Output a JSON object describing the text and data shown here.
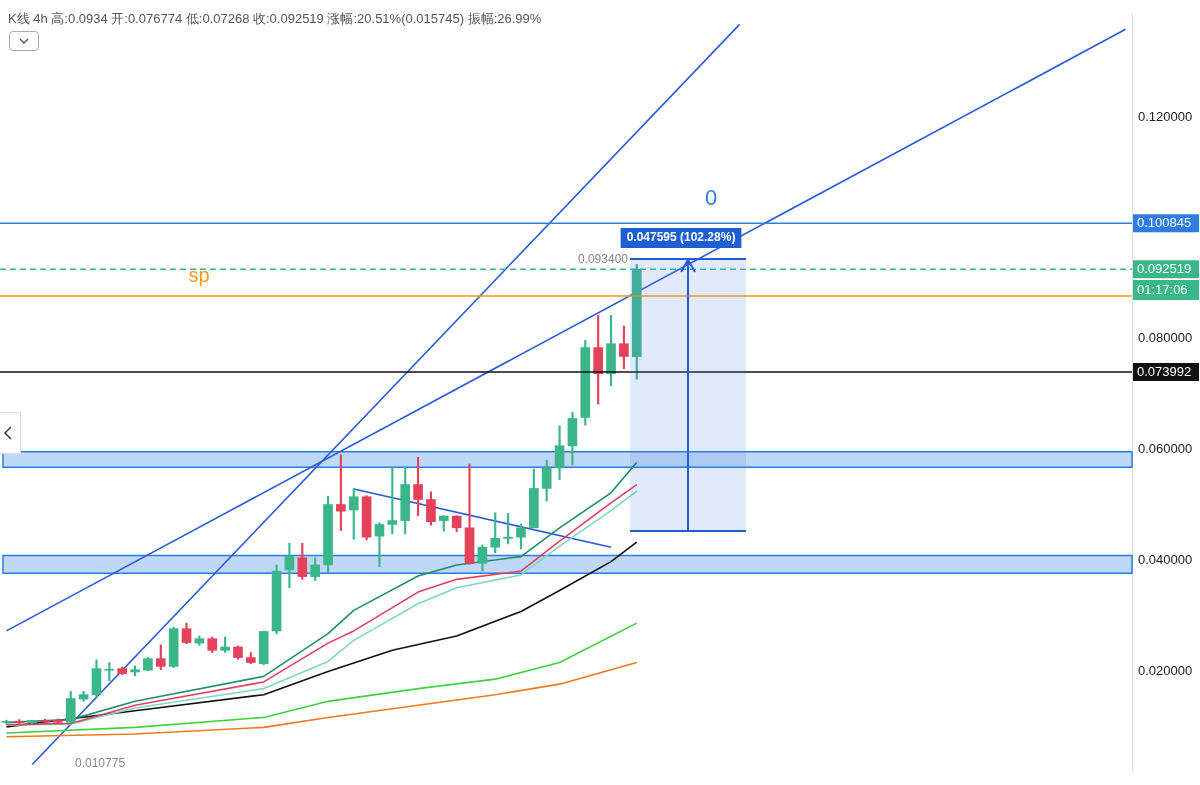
{
  "chart_data": {
    "type": "candlestick",
    "title": "K线 4h 高:0.0934 开:0.076774 低:0.07268 收:0.092519 涨幅:20.51%(0.015745) 振幅:26.99%",
    "categories": [
      null,
      null,
      null,
      null,
      null,
      null,
      null,
      null,
      null,
      null,
      null,
      null,
      null,
      null,
      null,
      null,
      null,
      null,
      null,
      null,
      null,
      null,
      null,
      null,
      null,
      null,
      null,
      null,
      null,
      null,
      null,
      null,
      null,
      null,
      null,
      null,
      null,
      null,
      null,
      null,
      null,
      null,
      null,
      null,
      null,
      null,
      null,
      null,
      null,
      null,
      null,
      null,
      null,
      null,
      null,
      null,
      null,
      null,
      null,
      null,
      null,
      null,
      null,
      null,
      null,
      null,
      null,
      null,
      null,
      null,
      null,
      null,
      null,
      null,
      null,
      null,
      null,
      null,
      null,
      null,
      null,
      null,
      null,
      null,
      null,
      null,
      null,
      null
    ],
    "ohlc": [
      [
        0.0108,
        0.0112,
        0.0105,
        0.011
      ],
      [
        0.011,
        0.0113,
        0.0106,
        0.0108
      ],
      [
        0.0108,
        0.0112,
        0.0105,
        0.0111
      ],
      [
        0.0111,
        0.0114,
        0.0107,
        0.0109
      ],
      [
        0.0112,
        0.0114,
        0.0106,
        0.0108
      ],
      [
        0.0108,
        0.0164,
        0.0107,
        0.0151
      ],
      [
        0.015,
        0.0164,
        0.0146,
        0.0158
      ],
      [
        0.0158,
        0.0221,
        0.0154,
        0.0205
      ],
      [
        0.0202,
        0.0216,
        0.0183,
        0.0204
      ],
      [
        0.0205,
        0.0208,
        0.0194,
        0.0196
      ],
      [
        0.0199,
        0.021,
        0.0192,
        0.0203
      ],
      [
        0.0202,
        0.0225,
        0.0201,
        0.0223
      ],
      [
        0.0223,
        0.0248,
        0.0203,
        0.0209
      ],
      [
        0.0209,
        0.028,
        0.0207,
        0.0277
      ],
      [
        0.0277,
        0.0287,
        0.025,
        0.0252
      ],
      [
        0.0251,
        0.0264,
        0.0247,
        0.0259
      ],
      [
        0.0259,
        0.0262,
        0.0234,
        0.0238
      ],
      [
        0.0238,
        0.0262,
        0.0234,
        0.0244
      ],
      [
        0.0244,
        0.0246,
        0.0222,
        0.0225
      ],
      [
        0.0225,
        0.0234,
        0.0214,
        0.0216
      ],
      [
        0.0214,
        0.0272,
        0.0212,
        0.0272
      ],
      [
        0.0273,
        0.0392,
        0.0268,
        0.0381
      ],
      [
        0.0383,
        0.0431,
        0.0351,
        0.0407
      ],
      [
        0.0405,
        0.0431,
        0.0366,
        0.0371
      ],
      [
        0.0371,
        0.0405,
        0.0364,
        0.0392
      ],
      [
        0.0392,
        0.0516,
        0.0378,
        0.0501
      ],
      [
        0.0501,
        0.059,
        0.0454,
        0.0489
      ],
      [
        0.0491,
        0.053,
        0.0438,
        0.0515
      ],
      [
        0.0515,
        0.0517,
        0.0437,
        0.0442
      ],
      [
        0.0444,
        0.0468,
        0.0389,
        0.0465
      ],
      [
        0.0465,
        0.0569,
        0.0448,
        0.0472
      ],
      [
        0.0472,
        0.0569,
        0.0448,
        0.0537
      ],
      [
        0.0537,
        0.0586,
        0.0481,
        0.051
      ],
      [
        0.051,
        0.0524,
        0.0464,
        0.047
      ],
      [
        0.0472,
        0.0481,
        0.0453,
        0.048
      ],
      [
        0.048,
        0.0481,
        0.0452,
        0.0459
      ],
      [
        0.0459,
        0.0574,
        0.0393,
        0.0395
      ],
      [
        0.0395,
        0.0428,
        0.0381,
        0.0424
      ],
      [
        0.0424,
        0.0486,
        0.0414,
        0.044
      ],
      [
        0.044,
        0.0485,
        0.043,
        0.0442
      ],
      [
        0.0442,
        0.0466,
        0.0421,
        0.0459
      ],
      [
        0.0459,
        0.0565,
        0.0459,
        0.053
      ],
      [
        0.053,
        0.0581,
        0.0507,
        0.0567
      ],
      [
        0.0567,
        0.0643,
        0.0546,
        0.0607
      ],
      [
        0.0607,
        0.0667,
        0.0573,
        0.0656
      ],
      [
        0.0658,
        0.0797,
        0.0644,
        0.0784
      ],
      [
        0.0784,
        0.0842,
        0.0682,
        0.0737
      ],
      [
        0.0737,
        0.0842,
        0.0715,
        0.0791
      ],
      [
        0.0791,
        0.0823,
        0.0746,
        0.0768
      ],
      [
        0.076774,
        0.0934,
        0.07268,
        0.092519
      ],
      null,
      null,
      null,
      null,
      null,
      null,
      null,
      null,
      null,
      null,
      null,
      null,
      null,
      null,
      null,
      null,
      null,
      null,
      null,
      null,
      null,
      null,
      null,
      null,
      null,
      null,
      null,
      null,
      null,
      null,
      null,
      null,
      null,
      null,
      null,
      null,
      null,
      null
    ],
    "colors": [
      "#3bb58a",
      "#e3425a",
      "#3bb58a",
      "#e3425a",
      "#e3425a",
      "#3bb58a",
      "#3bb58a",
      "#3bb58a",
      "#3bb58a",
      "#e3425a",
      "#3bb58a",
      "#3bb58a",
      "#e3425a",
      "#3bb58a",
      "#e3425a",
      "#3bb58a",
      "#e3425a",
      "#3bb58a",
      "#e3425a",
      "#e3425a",
      "#3bb58a",
      "#3bb58a",
      "#3bb58a",
      "#e3425a",
      "#3bb58a",
      "#3bb58a",
      "#e3425a",
      "#3bb58a",
      "#e3425a",
      "#3bb58a",
      "#3bb58a",
      "#3bb58a",
      "#e3425a",
      "#e3425a",
      "#3bb58a",
      "#e3425a",
      "#e3425a",
      "#3bb58a",
      "#3bb58a",
      "#3bb58a",
      "#3bb58a",
      "#3bb58a",
      "#3bb58a",
      "#3bb58a",
      "#3bb58a",
      "#3bb58a",
      "#e3425a",
      "#3bb58a",
      "#e3425a",
      "#3bb58a",
      null,
      null,
      null,
      null,
      null,
      null,
      null,
      null,
      null,
      null,
      null,
      null,
      null,
      null,
      null,
      null,
      null,
      null,
      null,
      null,
      null,
      null,
      null,
      null,
      null,
      null,
      null,
      null,
      null,
      null,
      null,
      null,
      null,
      null,
      null,
      null,
      null,
      null
    ],
    "series": [
      {
        "type": "line",
        "color": "#1f8f6a",
        "values": [
          0.0108,
          null,
          null,
          null,
          null,
          0.0113,
          null,
          null,
          null,
          null,
          0.0146,
          null,
          null,
          null,
          null,
          null,
          null,
          null,
          null,
          null,
          0.0191,
          null,
          null,
          null,
          null,
          0.0268,
          null,
          0.031,
          null,
          null,
          null,
          null,
          0.0372,
          null,
          null,
          0.0392,
          null,
          null,
          null,
          null,
          0.0407,
          null,
          null,
          0.0459,
          null,
          null,
          null,
          0.0522,
          null,
          0.0577,
          null,
          null,
          null,
          null,
          null,
          null,
          null,
          null,
          null,
          null,
          null,
          null,
          null,
          null,
          null,
          null,
          null,
          null,
          null,
          null,
          null,
          null,
          null,
          null,
          null,
          null,
          null,
          null,
          null,
          null,
          null,
          null,
          null,
          null,
          null,
          null,
          null,
          null
        ]
      },
      {
        "type": "line",
        "color": "#e0405e",
        "values": [
          0.0104,
          null,
          null,
          null,
          null,
          0.0106,
          null,
          null,
          null,
          null,
          0.0139,
          null,
          null,
          null,
          null,
          null,
          null,
          null,
          null,
          null,
          0.0181,
          null,
          null,
          null,
          null,
          0.0251,
          null,
          0.0273,
          null,
          null,
          null,
          null,
          0.0343,
          null,
          null,
          0.0366,
          null,
          null,
          null,
          null,
          0.0381,
          null,
          null,
          0.0435,
          null,
          null,
          null,
          0.0504,
          null,
          0.0537,
          null,
          null,
          null,
          null,
          null,
          null,
          null,
          null,
          null,
          null,
          null,
          null,
          null,
          null,
          null,
          null,
          null,
          null,
          null,
          null,
          null,
          null,
          null,
          null,
          null,
          null,
          null,
          null,
          null,
          null,
          null,
          null,
          null,
          null,
          null,
          null,
          null,
          null
        ]
      },
      {
        "type": "line",
        "color": "#7fd6c8",
        "values": [
          0.0103,
          null,
          null,
          null,
          null,
          0.0105,
          null,
          null,
          null,
          null,
          0.0134,
          null,
          null,
          null,
          null,
          null,
          null,
          null,
          null,
          null,
          0.0169,
          null,
          null,
          null,
          null,
          0.0218,
          null,
          0.0256,
          null,
          null,
          null,
          null,
          0.0322,
          null,
          null,
          0.0351,
          null,
          null,
          null,
          null,
          0.0374,
          null,
          null,
          0.0426,
          null,
          null,
          null,
          0.049,
          null,
          0.0525,
          null,
          null,
          null,
          null,
          null,
          null,
          null,
          null,
          null,
          null,
          null,
          null,
          null,
          null,
          null,
          null,
          null,
          null,
          null,
          null,
          null,
          null,
          null,
          null,
          null,
          null,
          null,
          null,
          null,
          null,
          null,
          null,
          null,
          null,
          null,
          null,
          null,
          null
        ]
      },
      {
        "type": "line",
        "color": "#111111",
        "values": [
          0.01,
          null,
          null,
          null,
          null,
          null,
          null,
          null,
          null,
          null,
          0.0129,
          null,
          null,
          null,
          null,
          null,
          null,
          null,
          null,
          null,
          0.0158,
          null,
          null,
          null,
          null,
          0.02,
          null,
          null,
          null,
          null,
          0.0238,
          null,
          null,
          null,
          null,
          0.0264,
          null,
          null,
          null,
          null,
          0.0308,
          null,
          null,
          0.0346,
          null,
          null,
          null,
          0.0398,
          null,
          0.0433,
          null,
          null,
          null,
          null,
          null,
          null,
          null,
          null,
          null,
          null,
          null,
          null,
          null,
          null,
          null,
          null,
          null,
          null,
          null,
          null,
          null,
          null,
          null,
          null,
          null,
          null,
          null,
          null,
          null,
          null,
          null,
          null,
          null,
          null,
          null,
          null,
          null,
          null
        ]
      },
      {
        "type": "line",
        "color": "#3fd23f",
        "values": [
          0.0089,
          null,
          null,
          null,
          null,
          null,
          null,
          null,
          null,
          null,
          0.0099,
          null,
          null,
          null,
          null,
          null,
          null,
          null,
          null,
          null,
          0.0117,
          null,
          null,
          null,
          null,
          0.0146,
          null,
          null,
          null,
          null,
          null,
          null,
          0.0169,
          null,
          null,
          null,
          null,
          null,
          0.0186,
          null,
          null,
          null,
          null,
          0.0216,
          null,
          null,
          null,
          null,
          null,
          0.0287,
          null,
          null,
          null,
          null,
          null,
          null,
          null,
          null,
          null,
          null,
          null,
          null,
          null,
          null,
          null,
          null,
          null,
          null,
          null,
          null,
          null,
          null,
          null,
          null,
          null,
          null,
          null,
          null,
          null,
          null,
          null,
          null,
          null,
          null,
          null,
          null,
          null,
          null
        ]
      },
      {
        "type": "line",
        "color": "#f0781e",
        "values": [
          0.0082,
          null,
          null,
          null,
          null,
          null,
          null,
          null,
          null,
          null,
          0.0087,
          null,
          null,
          null,
          null,
          null,
          null,
          null,
          null,
          null,
          0.0099,
          null,
          null,
          null,
          null,
          0.0117,
          null,
          null,
          null,
          null,
          null,
          null,
          0.0139,
          null,
          null,
          null,
          null,
          null,
          0.0158,
          null,
          null,
          null,
          null,
          0.0177,
          null,
          null,
          null,
          null,
          null,
          0.0216,
          null,
          null,
          null,
          null,
          null,
          null,
          null,
          null,
          null,
          null,
          null,
          null,
          null,
          null,
          null,
          null,
          null,
          null,
          null,
          null,
          null,
          null,
          null,
          null,
          null,
          null,
          null,
          null,
          null,
          null,
          null,
          null,
          null,
          null,
          null,
          null,
          null,
          null
        ]
      },
      {
        "type": "line",
        "color": "#2a5bd7",
        "values": [
          null,
          null,
          0.0032,
          null,
          null,
          null,
          null,
          null,
          null,
          null,
          null,
          null,
          null,
          null,
          null,
          null,
          null,
          null,
          null,
          null,
          null,
          null,
          null,
          null,
          null,
          null,
          null,
          null,
          null,
          null,
          null,
          null,
          null,
          null,
          null,
          null,
          null,
          null,
          null,
          null,
          null,
          null,
          null,
          null,
          null,
          null,
          null,
          null,
          null,
          null,
          null,
          null,
          null,
          null,
          null,
          null,
          null,
          0.1367,
          null,
          null,
          null,
          null,
          null,
          null,
          null,
          null,
          null,
          null,
          null,
          null,
          null,
          null,
          null,
          null,
          null,
          null,
          null,
          null,
          null,
          null,
          null,
          null,
          null,
          null,
          null,
          null,
          null,
          null
        ]
      },
      {
        "type": "line",
        "color": "#2a5bd7",
        "values": [
          0.0273,
          null,
          null,
          null,
          null,
          null,
          null,
          null,
          null,
          null,
          null,
          null,
          null,
          null,
          null,
          null,
          null,
          null,
          null,
          null,
          null,
          null,
          null,
          null,
          null,
          null,
          null,
          null,
          null,
          null,
          null,
          null,
          null,
          null,
          null,
          null,
          null,
          null,
          null,
          null,
          null,
          null,
          null,
          null,
          null,
          null,
          null,
          null,
          null,
          null,
          null,
          null,
          null,
          null,
          null,
          null,
          null,
          null,
          null,
          null,
          null,
          null,
          null,
          null,
          null,
          null,
          null,
          null,
          null,
          null,
          null,
          null,
          null,
          null,
          null,
          null,
          null,
          null,
          null,
          null,
          null,
          null,
          null,
          null,
          null,
          null,
          null,
          0.1358
        ]
      },
      {
        "type": "line",
        "color": "#2a5bd7",
        "values": [
          null,
          null,
          null,
          null,
          null,
          null,
          null,
          null,
          null,
          null,
          null,
          null,
          null,
          null,
          null,
          null,
          null,
          null,
          null,
          null,
          null,
          null,
          null,
          null,
          null,
          null,
          null,
          0.0529,
          null,
          null,
          null,
          null,
          null,
          null,
          null,
          null,
          null,
          null,
          null,
          null,
          null,
          null,
          null,
          null,
          null,
          null,
          null,
          0.0424,
          null,
          null,
          null,
          null,
          null,
          null,
          null,
          null,
          null,
          null,
          null,
          null,
          null,
          null,
          null,
          null,
          null,
          null,
          null,
          null,
          null,
          null,
          null,
          null,
          null,
          null,
          null,
          null,
          null,
          null,
          null,
          null,
          null,
          null,
          null,
          null,
          null,
          null,
          null,
          null
        ]
      }
    ],
    "ylim": [
      0.002,
      0.1386
    ],
    "yticks": [
      {
        "value": 0.02,
        "label": "0.020000"
      },
      {
        "value": 0.04,
        "label": "0.040000"
      },
      {
        "value": 0.06,
        "label": "0.060000"
      },
      {
        "value": 0.08,
        "label": "0.080000"
      },
      {
        "value": 0.12,
        "label": "0.120000"
      }
    ],
    "tick_labels": "y",
    "grid": false,
    "legend": false,
    "marker": "none",
    "ref_lines": [
      {
        "axis": "y",
        "value": 0.100845,
        "label": "0.100845",
        "color": "#2f7de1"
      },
      {
        "axis": "y",
        "value": 0.092519,
        "label": "0.092519",
        "color": "#3bb58a",
        "line_style": "dashed"
      },
      {
        "axis": "y",
        "value": 0.0877,
        "color": "#f29a1f"
      },
      {
        "axis": "y",
        "value": 0.073992,
        "label": "0.073992",
        "color": "#111111"
      }
    ],
    "bands": [
      {
        "axis": "y",
        "from": 0.0568,
        "to": 0.0596,
        "color": "#2b7de0"
      },
      {
        "axis": "y",
        "from": 0.0377,
        "to": 0.0409,
        "color": "#2b7de0"
      }
    ],
    "annotations": [
      "sp",
      "0",
      "0.093400",
      "0.047595 (102.28%)",
      "0.010775",
      "01:17:06"
    ]
  }
}
